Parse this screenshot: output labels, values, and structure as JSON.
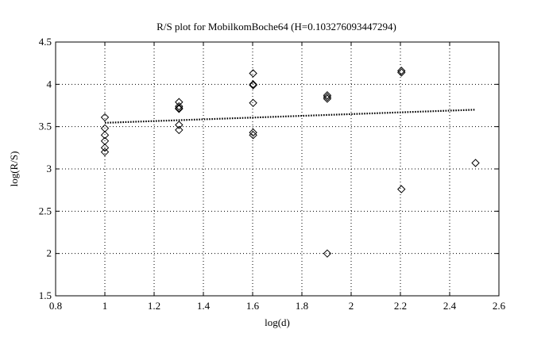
{
  "chart_data": {
    "type": "scatter",
    "title": "R/S plot for MobilkomBoche64 (H=0.103276093447294)",
    "xlabel": "log(d)",
    "ylabel": "log(R/S)",
    "xlim": [
      0.8,
      2.6
    ],
    "ylim": [
      1.5,
      4.5
    ],
    "xticks": [
      "0.8",
      "1",
      "1.2",
      "1.4",
      "1.6",
      "1.8",
      "2",
      "2.2",
      "2.4",
      "2.6"
    ],
    "yticks": [
      "1.5",
      "2",
      "2.5",
      "3",
      "3.5",
      "4",
      "4.5"
    ],
    "grid": true,
    "legend": "none",
    "series": [
      {
        "marker": "diamond",
        "points": [
          [
            1.0,
            3.61
          ],
          [
            1.0,
            3.48
          ],
          [
            1.0,
            3.4
          ],
          [
            1.0,
            3.33
          ],
          [
            1.0,
            3.25
          ],
          [
            1.0,
            3.2
          ],
          [
            1.301,
            3.79
          ],
          [
            1.301,
            3.74
          ],
          [
            1.301,
            3.72
          ],
          [
            1.301,
            3.71
          ],
          [
            1.301,
            3.52
          ],
          [
            1.301,
            3.46
          ],
          [
            1.602,
            4.13
          ],
          [
            1.602,
            4.0
          ],
          [
            1.602,
            3.99
          ],
          [
            1.602,
            3.78
          ],
          [
            1.602,
            3.43
          ],
          [
            1.602,
            3.4
          ],
          [
            1.903,
            3.87
          ],
          [
            1.903,
            3.85
          ],
          [
            1.903,
            3.83
          ],
          [
            1.903,
            2.0
          ],
          [
            2.204,
            4.16
          ],
          [
            2.204,
            4.14
          ],
          [
            2.204,
            2.76
          ],
          [
            2.505,
            3.07
          ]
        ]
      },
      {
        "style": "dotted-line",
        "points": [
          [
            1.0,
            3.545
          ],
          [
            2.505,
            3.7
          ]
        ]
      }
    ]
  }
}
